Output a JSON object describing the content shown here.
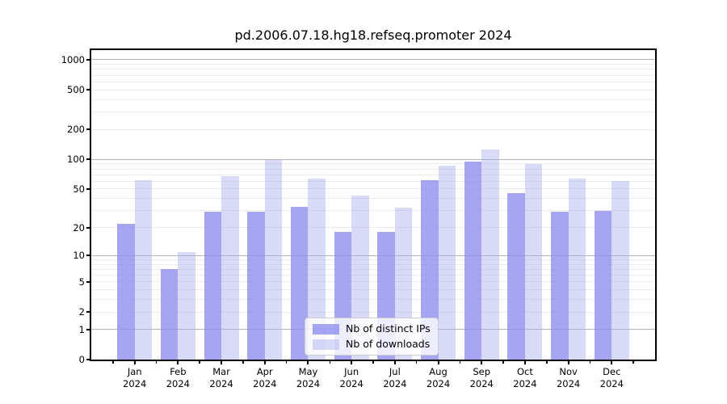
{
  "chart_data": {
    "type": "bar",
    "title": "pd.2006.07.18.hg18.refseq.promoter 2024",
    "categories": [
      "Jan",
      "Feb",
      "Mar",
      "Apr",
      "May",
      "Jun",
      "Jul",
      "Aug",
      "Sep",
      "Oct",
      "Nov",
      "Dec"
    ],
    "x_year_label": "2024",
    "series": [
      {
        "name": "Nb of distinct IPs",
        "fill": "rgba(142,142,239,0.8)",
        "values": [
          22,
          7,
          29,
          29,
          33,
          18,
          18,
          61,
          95,
          45,
          29,
          30
        ]
      },
      {
        "name": "Nb of downloads",
        "fill": "rgba(170,170,240,0.45)",
        "values": [
          61,
          11,
          68,
          98,
          64,
          43,
          32,
          86,
          126,
          89,
          64,
          60
        ]
      }
    ],
    "y_axis": {
      "scale": "log1p",
      "ticks": [
        1000,
        500,
        200,
        100,
        50,
        20,
        10,
        5,
        2,
        1,
        0
      ],
      "major_gridlines": [
        1,
        10,
        100,
        1000
      ],
      "ylim": [
        0,
        1250
      ]
    },
    "xlabel": "",
    "ylabel": "",
    "grid": true,
    "legend_position": "lower center"
  },
  "colors": {
    "bar_distinct_ips": "#a5a5f1",
    "bar_downloads": "#d9d9f9",
    "major_grid": "#b2b2b2",
    "minor_grid": "#ebebeb",
    "spine": "#000000",
    "text": "#000000"
  }
}
